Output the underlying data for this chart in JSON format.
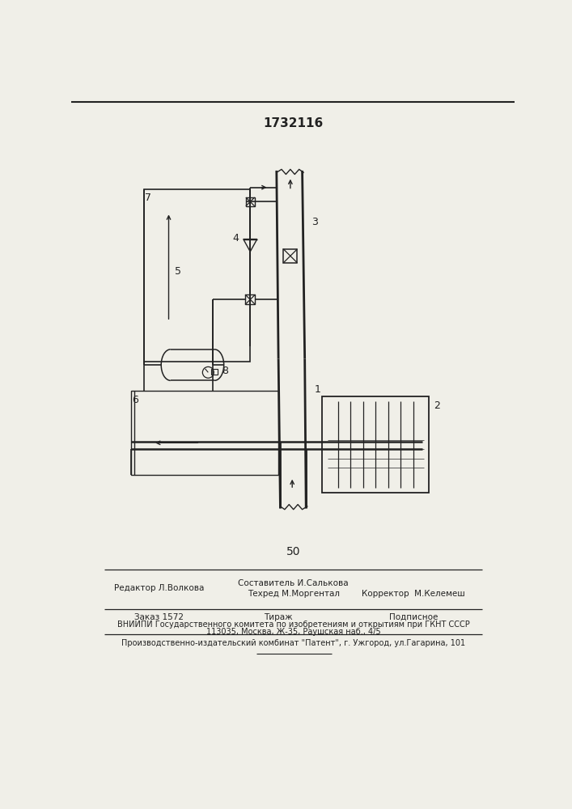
{
  "title": "1732116",
  "page_number": "50",
  "bg": "#f0efe8",
  "lc": "#222222",
  "footer": {
    "editor": "Редактор Л.Волкова",
    "composer1": "Составитель И.Салькова",
    "composer2": "Техред М.Моргентал",
    "corrector": "Корректор  М.Келемеш",
    "order": "Заказ 1572",
    "tirazh": "Тираж",
    "podpisnoe": "Подписное",
    "vniiipi": "ВНИИПИ Государственного комитета по изобретениям и открытиям при ГКНТ СССР",
    "address": "113035, Москва, Ж-35, Раушская наб., 4/5",
    "publisher": "Производственно-издательский комбинат \"Патент\", г. Ужгород, ул.Гагарина, 101"
  }
}
